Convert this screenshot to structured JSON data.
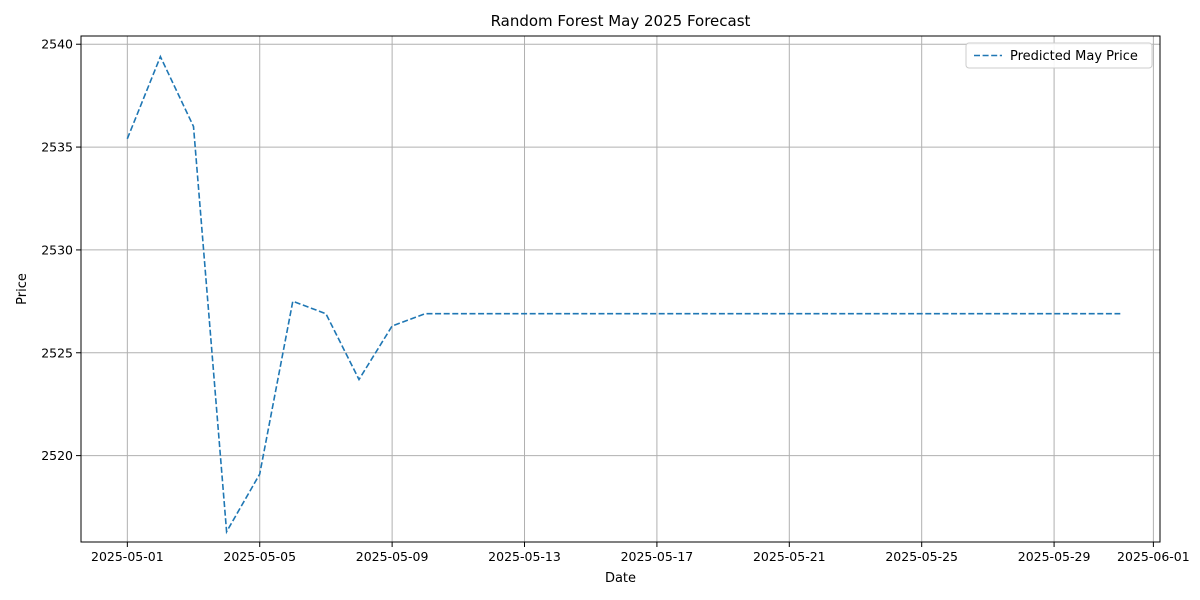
{
  "chart_data": {
    "type": "line",
    "title": "Random Forest May 2025 Forecast",
    "xlabel": "Date",
    "ylabel": "Price",
    "x_axis_type": "date",
    "xlim": [
      "2025-04-29",
      "2025-06-01"
    ],
    "ylim": [
      2515.8,
      2540.4
    ],
    "x_ticks": [
      "2025-05-01",
      "2025-05-05",
      "2025-05-09",
      "2025-05-13",
      "2025-05-17",
      "2025-05-21",
      "2025-05-25",
      "2025-05-29",
      "2025-06-01"
    ],
    "y_ticks": [
      2520,
      2525,
      2530,
      2535,
      2540
    ],
    "grid": true,
    "legend_position": "top-right",
    "series": [
      {
        "name": "Predicted May Price",
        "color": "#1f77b4",
        "line_style": "dashed",
        "x": [
          "2025-05-01",
          "2025-05-02",
          "2025-05-03",
          "2025-05-04",
          "2025-05-05",
          "2025-05-06",
          "2025-05-07",
          "2025-05-08",
          "2025-05-09",
          "2025-05-10",
          "2025-05-11",
          "2025-05-12",
          "2025-05-13",
          "2025-05-14",
          "2025-05-15",
          "2025-05-16",
          "2025-05-17",
          "2025-05-18",
          "2025-05-19",
          "2025-05-20",
          "2025-05-21",
          "2025-05-22",
          "2025-05-23",
          "2025-05-24",
          "2025-05-25",
          "2025-05-26",
          "2025-05-27",
          "2025-05-28",
          "2025-05-29",
          "2025-05-30",
          "2025-05-31"
        ],
        "values": [
          2535.4,
          2539.4,
          2536.0,
          2516.3,
          2519.1,
          2527.5,
          2526.9,
          2523.7,
          2526.3,
          2526.9,
          2526.9,
          2526.9,
          2526.9,
          2526.9,
          2526.9,
          2526.9,
          2526.9,
          2526.9,
          2526.9,
          2526.9,
          2526.9,
          2526.9,
          2526.9,
          2526.9,
          2526.9,
          2526.9,
          2526.9,
          2526.9,
          2526.9,
          2526.9,
          2526.9
        ]
      }
    ]
  }
}
